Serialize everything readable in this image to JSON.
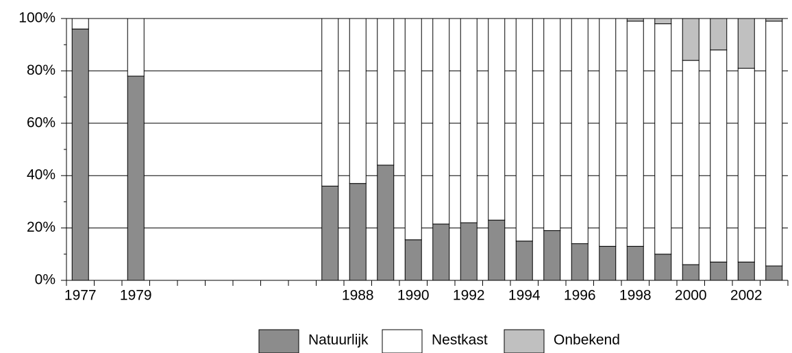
{
  "chart_data": {
    "type": "bar",
    "stacked": true,
    "categories": [
      "1977",
      null,
      "1979",
      null,
      null,
      null,
      null,
      null,
      null,
      null,
      "1988",
      null,
      "1990",
      null,
      "1992",
      null,
      "1994",
      null,
      "1996",
      null,
      "1998",
      null,
      "2000",
      null,
      "2002",
      null
    ],
    "series": [
      {
        "name": "Natuurlijk",
        "color": "#8c8c8c",
        "values": [
          96,
          0,
          78,
          0,
          0,
          0,
          0,
          0,
          0,
          36,
          37,
          44,
          15.5,
          21.5,
          22,
          23,
          15,
          19,
          14,
          13,
          13,
          10,
          6,
          7,
          7,
          5.5
        ]
      },
      {
        "name": "Nestkast",
        "color": "#ffffff",
        "values": [
          4,
          0,
          22,
          0,
          0,
          0,
          0,
          0,
          0,
          64,
          63,
          56,
          84.5,
          78.5,
          78,
          77,
          85,
          81,
          86,
          87,
          86,
          88,
          78,
          81,
          74,
          93.5
        ]
      },
      {
        "name": "Onbekend",
        "color": "#c0c0c0",
        "values": [
          0,
          0,
          0,
          0,
          0,
          0,
          0,
          0,
          0,
          0,
          0,
          0,
          0,
          0,
          0,
          0,
          0,
          0,
          0,
          0,
          1,
          2,
          16,
          12,
          19,
          1
        ]
      }
    ],
    "ylim": [
      0,
      100
    ],
    "yticks": [
      {
        "value": 0,
        "label": "0%"
      },
      {
        "value": 20,
        "label": "20%"
      },
      {
        "value": 40,
        "label": "40%"
      },
      {
        "value": 60,
        "label": "60%"
      },
      {
        "value": 80,
        "label": "80%"
      },
      {
        "value": 100,
        "label": "100%"
      }
    ],
    "grid": true,
    "legend": "bottom"
  }
}
